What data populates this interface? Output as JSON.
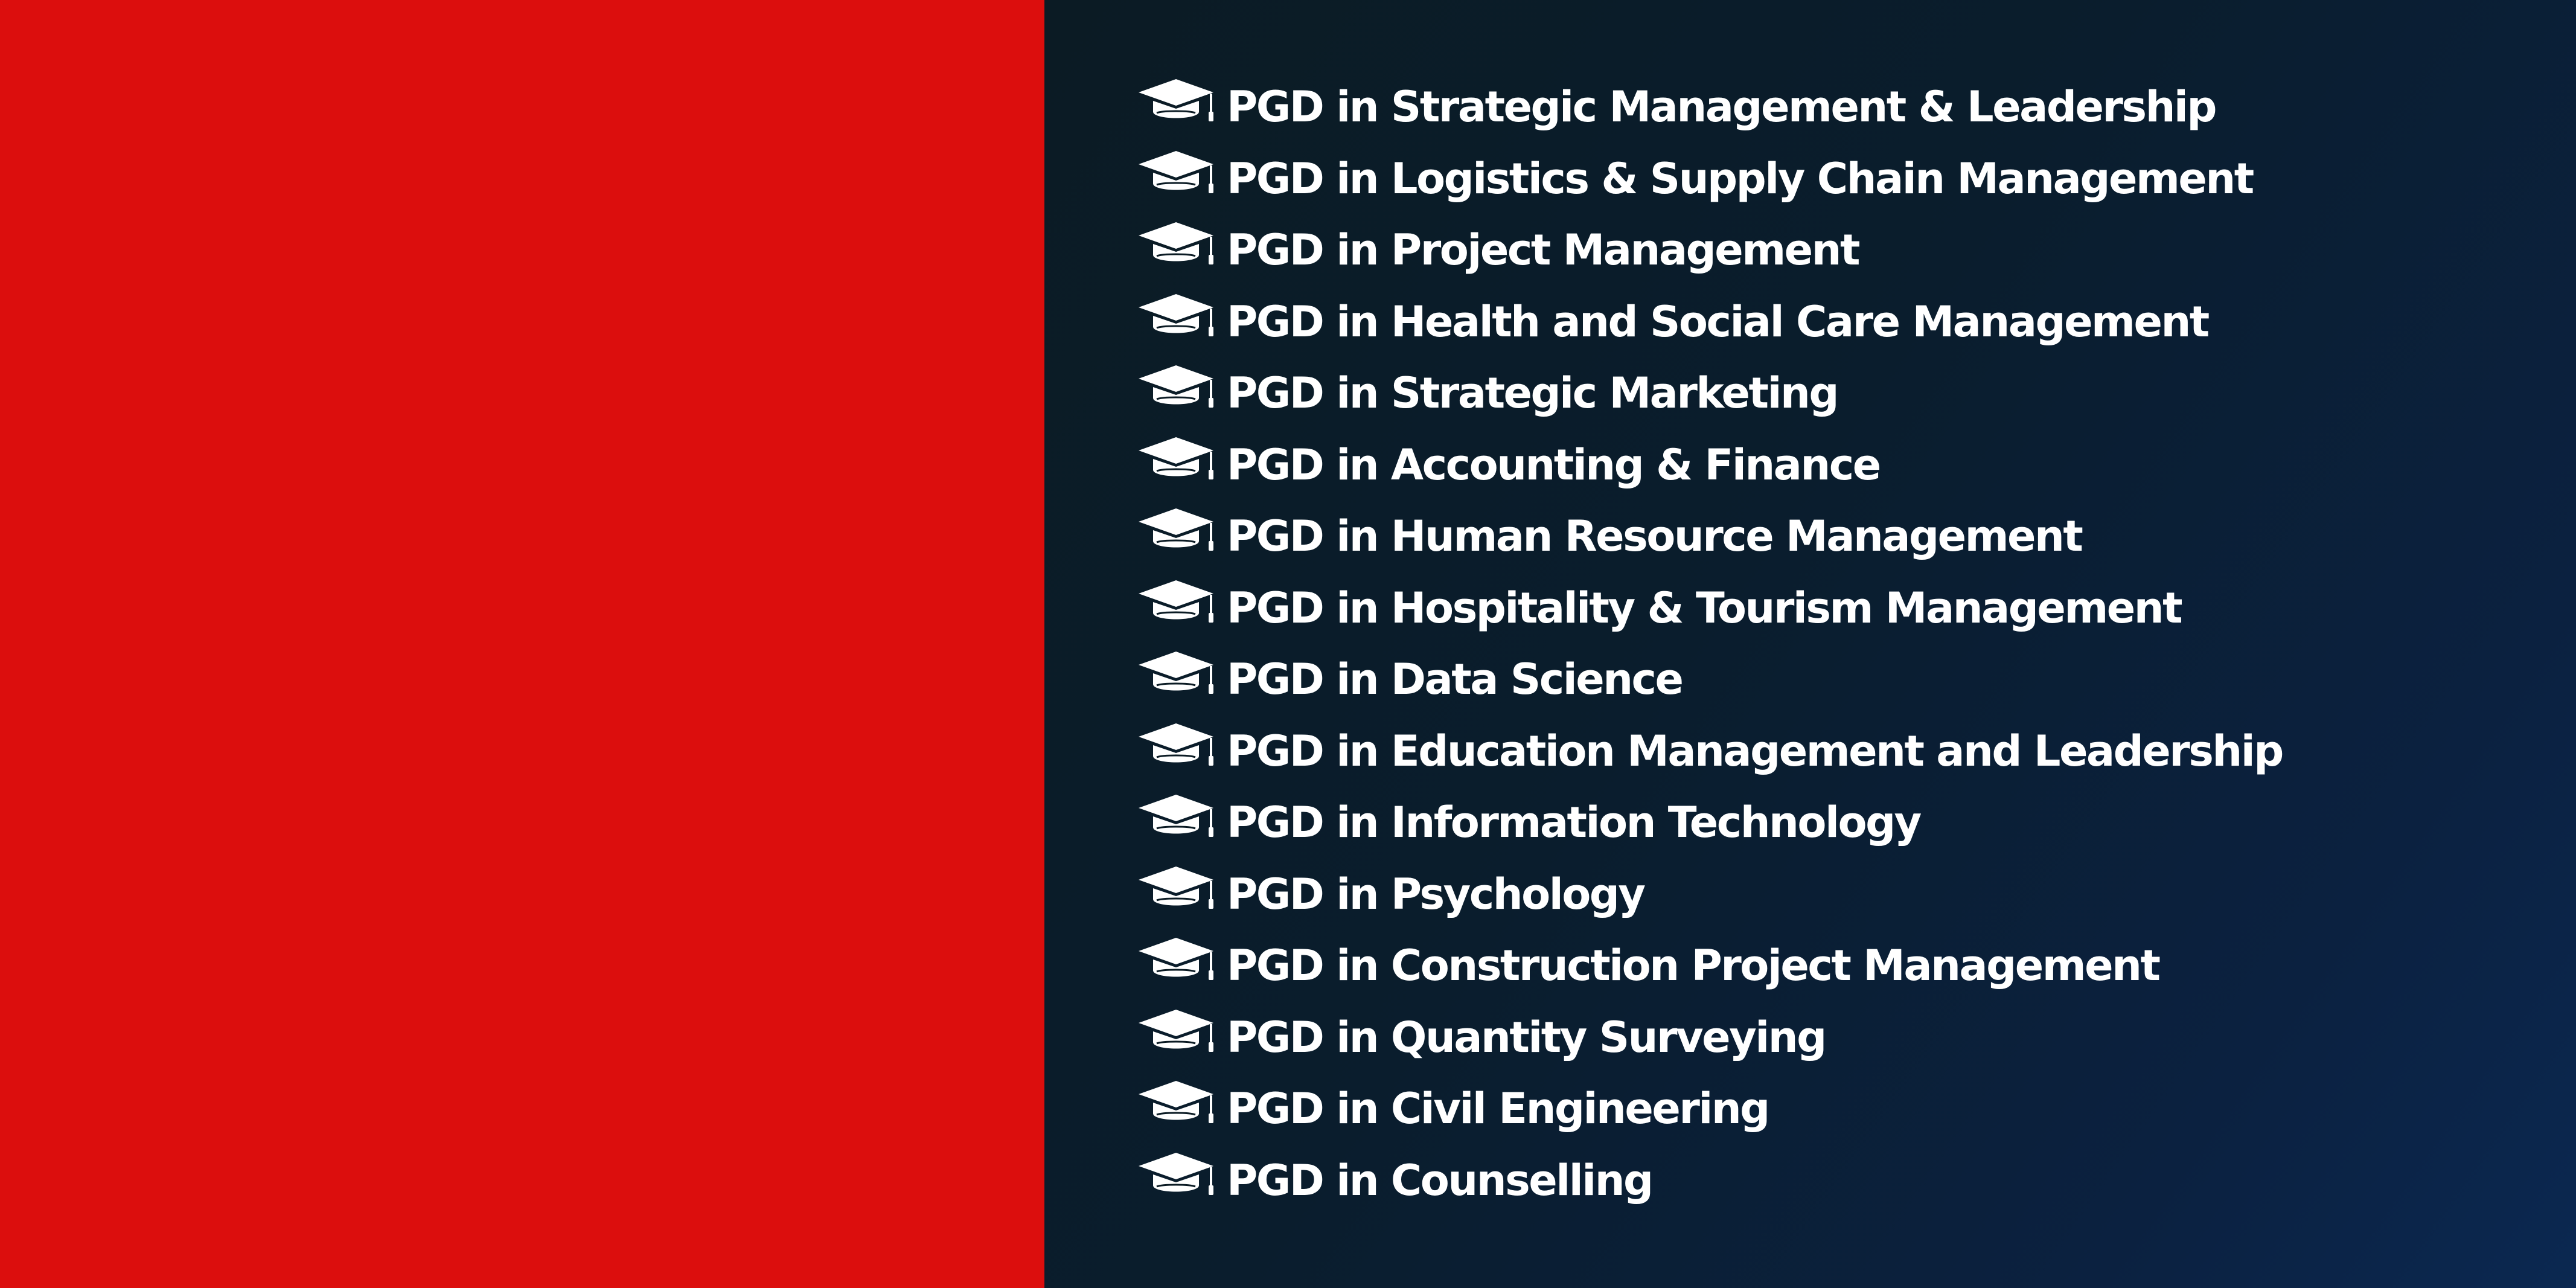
{
  "colors": {
    "left_panel": "#dc0e0d",
    "right_panel_dark": "#0b1b24",
    "right_panel_blue": "#0b2851",
    "text": "#ffffff"
  },
  "list_icon": "graduation-cap-icon",
  "courses": [
    "PGD in Strategic Management & Leadership",
    "PGD in Logistics & Supply Chain Management",
    "PGD in Project Management",
    "PGD in Health and Social Care Management",
    "PGD in Strategic Marketing",
    "PGD in Accounting & Finance",
    "PGD in Human Resource Management",
    "PGD in Hospitality & Tourism Management",
    "PGD in Data Science",
    "PGD in Education Management and Leadership",
    "PGD in Information Technology",
    "PGD in Psychology",
    "PGD in Construction Project Management",
    "PGD in Quantity Surveying",
    "PGD in Civil Engineering",
    "PGD in Counselling"
  ]
}
